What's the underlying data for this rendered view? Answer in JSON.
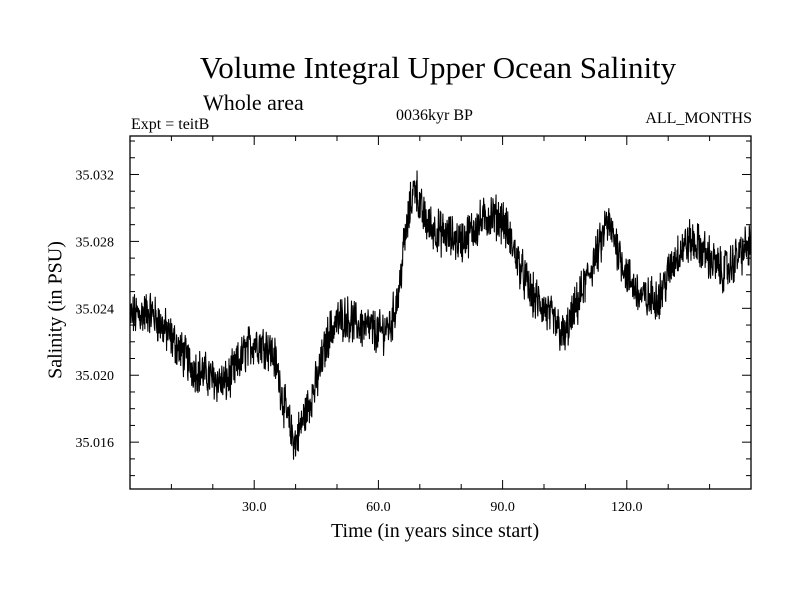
{
  "header": {
    "title": "Volume Integral Upper Ocean Salinity",
    "subtitle": "Whole area",
    "experiment": "Expt = teitB",
    "epoch": "0036kyr BP",
    "months": "ALL_MONTHS"
  },
  "chart_data": {
    "type": "line",
    "title": "Volume Integral Upper Ocean Salinity",
    "xlabel": "Time (in years since start)",
    "ylabel": "Salinity (in PSU)",
    "xlim": [
      0,
      150
    ],
    "ylim": [
      35.0132,
      35.0343
    ],
    "xticks": [
      30.0,
      60.0,
      90.0,
      120.0
    ],
    "xtick_labels": [
      "30.0",
      "60.0",
      "90.0",
      "120.0"
    ],
    "yticks": [
      35.016,
      35.02,
      35.024,
      35.028,
      35.032
    ],
    "ytick_labels": [
      "35.016",
      "35.020",
      "35.024",
      "35.028",
      "35.032"
    ],
    "grid": false,
    "series": [
      {
        "name": "Salinity",
        "color": "#000000",
        "x": [
          0,
          5,
          10,
          15,
          20,
          23,
          25,
          28,
          30,
          33,
          35,
          37,
          39,
          40,
          42,
          45,
          48,
          50,
          52,
          55,
          58,
          60,
          63,
          65,
          66,
          68,
          69,
          70,
          72,
          75,
          78,
          80,
          82,
          85,
          87,
          90,
          92,
          95,
          97,
          100,
          103,
          105,
          106,
          108,
          110,
          112,
          114,
          115,
          117,
          120,
          123,
          125,
          128,
          130,
          132,
          135,
          137,
          140,
          143,
          145,
          147,
          150
        ],
        "y": [
          35.0235,
          35.0238,
          35.0222,
          35.0205,
          35.0198,
          35.0195,
          35.0202,
          35.0215,
          35.022,
          35.0218,
          35.021,
          35.0185,
          35.0165,
          35.016,
          35.0175,
          35.0195,
          35.0225,
          35.0232,
          35.0235,
          35.023,
          35.0228,
          35.0225,
          35.023,
          35.025,
          35.0275,
          35.0305,
          35.0315,
          35.03,
          35.029,
          35.0285,
          35.0282,
          35.028,
          35.0285,
          35.0292,
          35.0296,
          35.0293,
          35.028,
          35.026,
          35.0248,
          35.024,
          35.023,
          35.0222,
          35.023,
          35.0242,
          35.0255,
          35.0268,
          35.028,
          35.0292,
          35.0282,
          35.026,
          35.0248,
          35.0245,
          35.0248,
          35.026,
          35.0272,
          35.028,
          35.0278,
          35.027,
          35.0262,
          35.0265,
          35.0272,
          35.0278
        ]
      }
    ]
  }
}
